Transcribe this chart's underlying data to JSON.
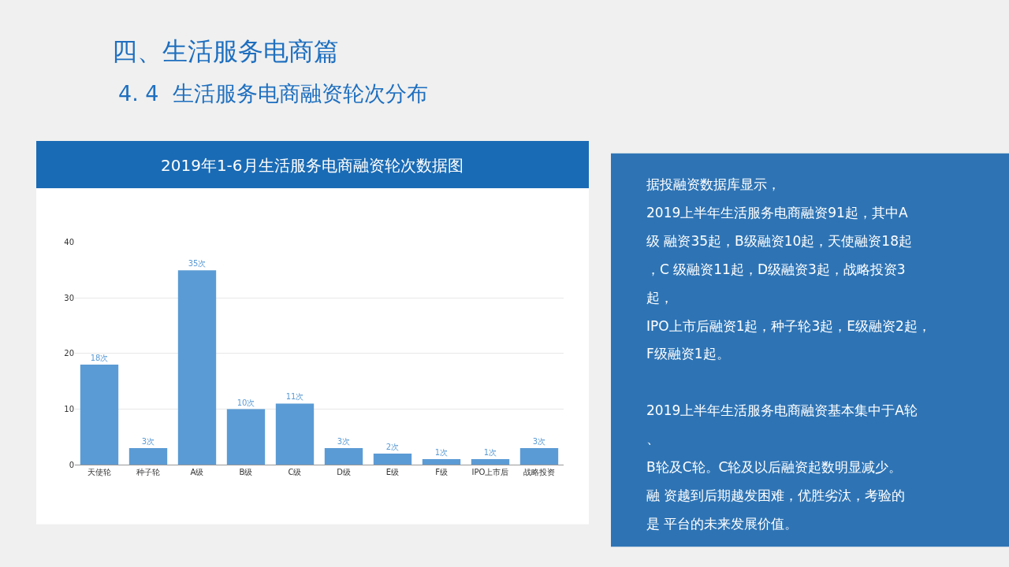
{
  "chart_data": {
    "type": "bar",
    "title": "2019年1-6月生活服务电商融资轮次数据图",
    "categories": [
      "天使轮",
      "种子轮",
      "A级",
      "B级",
      "C级",
      "D级",
      "E级",
      "F级",
      "IPO上市后",
      "战略投资"
    ],
    "values": [
      18,
      3,
      35,
      10,
      11,
      3,
      2,
      1,
      1,
      3
    ],
    "value_labels": [
      "18次",
      "3次",
      "35次",
      "10次",
      "11次",
      "3次",
      "2次",
      "1次",
      "1次",
      "3次"
    ],
    "color": "#5b9bd5",
    "ylim": [
      0,
      40
    ],
    "yticks": [
      0,
      10,
      20,
      30,
      40
    ],
    "grid": "y",
    "annotations": [
      "四、生活服务电商篇",
      "4. 4  生活服务电商融资轮次分布",
      "据投融资数据库显示，",
      "2019上半年生活服务电商融资91起，其中A",
      "级 融资35起，B级融资10起，天使融资18起",
      "，C 级融资11起，D级融资3起，战略投资3",
      "起，",
      "IPO上市后融资1起，种子轮3起，E级融资2起，",
      "F级融资1起。",
      "2019上半年生活服务电商融资基本集中于A轮",
      "、",
      "B轮及C轮。C轮及以后融资起数明显减少。",
      "融 资越到后期越发困难，优胜劣汰，考验的",
      "是 平台的未来发展价值。"
    ]
  }
}
